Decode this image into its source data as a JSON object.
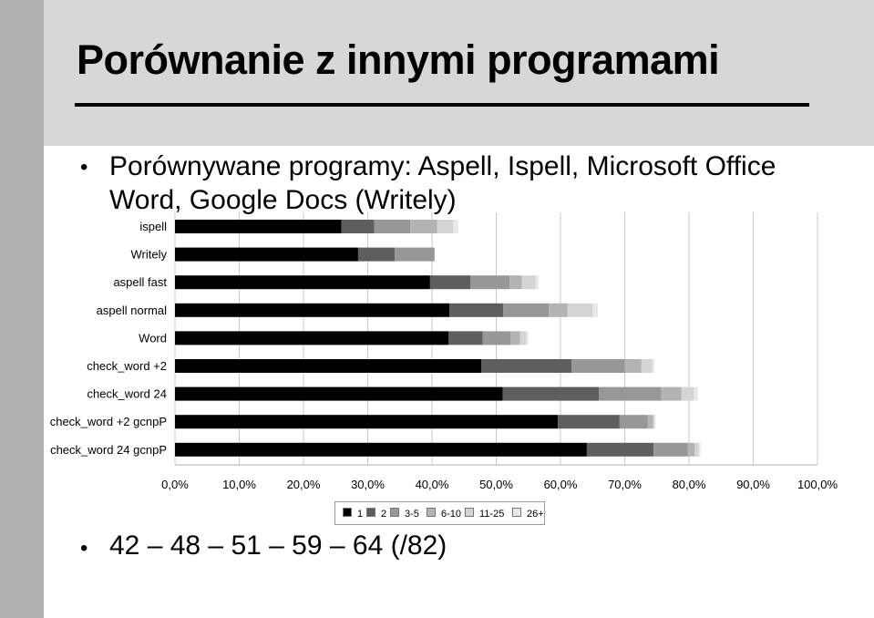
{
  "slide": {
    "title": "Porównanie z innymi programami",
    "bullet1": "Porównywane programy: Aspell, Ispell, Microsoft Office Word, Google Docs (Writely)",
    "bullet2": "42 – 48 – 51 – 59 – 64 (/82)",
    "bullet_glyph": "•"
  },
  "colors": {
    "header_band": "#d7d7d7",
    "side_strip": "#b1b1b1",
    "series": [
      "#000000",
      "#5e5e5e",
      "#979797",
      "#b3b3b3",
      "#d4d4d4",
      "#e8e8e8"
    ]
  },
  "chart_data": {
    "type": "bar",
    "orientation": "horizontal",
    "stacked": true,
    "categories": [
      "ispell",
      "Writely",
      "aspell fast",
      "aspell normal",
      "Word",
      "check_word +2",
      "check_word 24",
      "check_word +2 gcnpP",
      "check_word 24 gcnpP"
    ],
    "series": [
      {
        "name": "1",
        "values": [
          25.9,
          28.5,
          39.7,
          42.7,
          42.6,
          47.7,
          51.0,
          59.6,
          64.1
        ]
      },
      {
        "name": "2",
        "values": [
          5.1,
          5.7,
          6.3,
          8.4,
          5.3,
          14.0,
          15.0,
          9.6,
          10.4
        ]
      },
      {
        "name": "3-5",
        "values": [
          5.6,
          6.2,
          6.1,
          7.1,
          4.3,
          8.3,
          9.7,
          4.4,
          5.3
        ]
      },
      {
        "name": "6-10",
        "values": [
          4.2,
          0,
          1.9,
          2.9,
          1.5,
          2.6,
          3.1,
          0.8,
          1.1
        ]
      },
      {
        "name": "11-25",
        "values": [
          2.5,
          0,
          2.1,
          3.9,
          1.0,
          1.7,
          2.0,
          0.2,
          0.6
        ]
      },
      {
        "name": "26+",
        "values": [
          0.8,
          0,
          0.5,
          0.8,
          0.3,
          0.3,
          0.6,
          0.2,
          0.3
        ]
      }
    ],
    "xlim": [
      0,
      100
    ],
    "x_ticks": [
      "0,0%",
      "10,0%",
      "20,0%",
      "30,0%",
      "40,0%",
      "50,0%",
      "60,0%",
      "70,0%",
      "80,0%",
      "90,0%",
      "100,0%"
    ],
    "grid": true,
    "legend_position": "bottom",
    "title": "",
    "xlabel": "",
    "ylabel": ""
  }
}
